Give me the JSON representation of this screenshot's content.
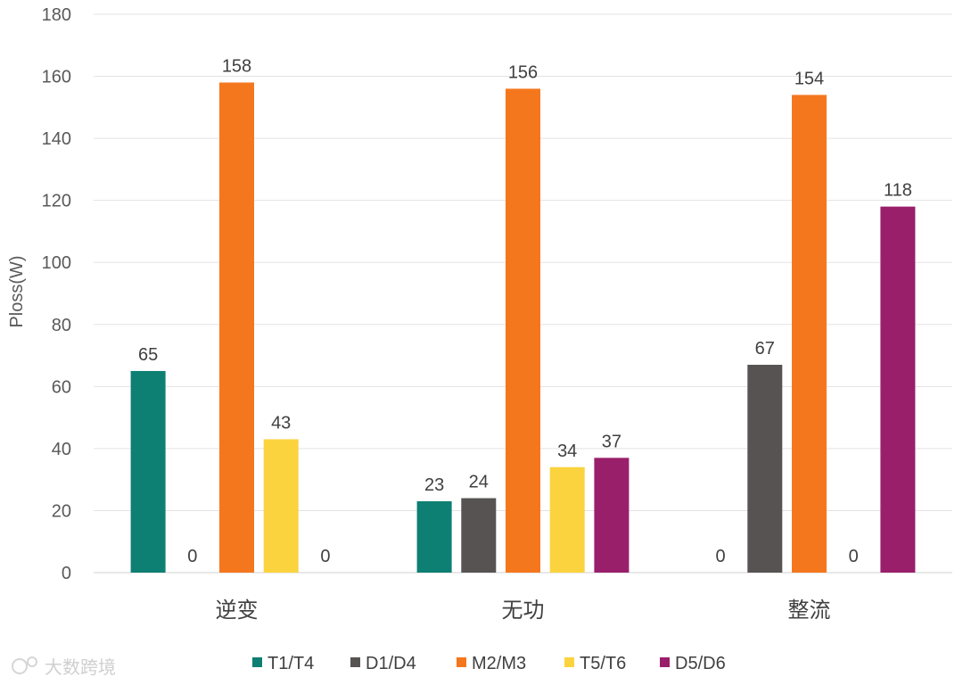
{
  "chart_data": {
    "type": "bar",
    "title": "",
    "xlabel": "",
    "ylabel": "Ploss(W)",
    "ylim": [
      0,
      180
    ],
    "yticks": [
      0,
      20,
      40,
      60,
      80,
      100,
      120,
      140,
      160,
      180
    ],
    "grid": true,
    "legend_position": "bottom",
    "categories": [
      "逆变",
      "无功",
      "整流"
    ],
    "series": [
      {
        "name": "T1/T4",
        "color": "#0d7f73",
        "values": [
          65,
          23,
          0
        ]
      },
      {
        "name": "D1/D4",
        "color": "#575352",
        "values": [
          0,
          24,
          67
        ]
      },
      {
        "name": "M2/M3",
        "color": "#f5771d",
        "values": [
          158,
          156,
          154
        ]
      },
      {
        "name": "T5/T6",
        "color": "#fbd33f",
        "values": [
          43,
          34,
          0
        ]
      },
      {
        "name": "D5/D6",
        "color": "#9a1f6b",
        "values": [
          0,
          37,
          118
        ]
      }
    ]
  },
  "watermark": {
    "text": "大数跨境"
  }
}
